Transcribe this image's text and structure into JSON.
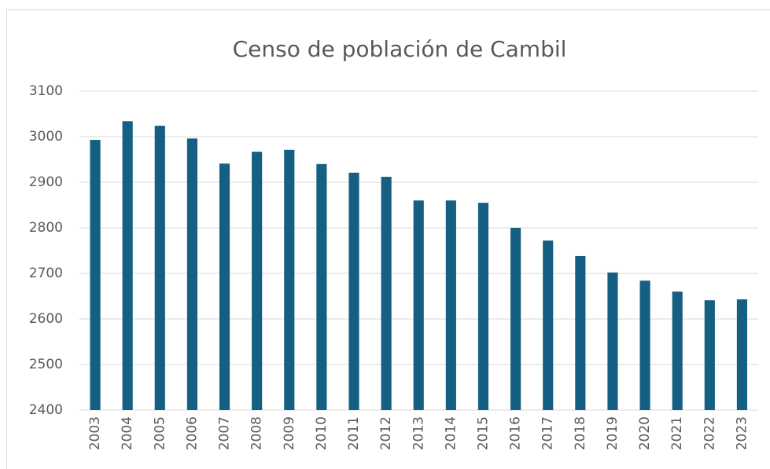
{
  "chart_data": {
    "type": "bar",
    "title": "Censo de población de Cambil",
    "categories": [
      "2003",
      "2004",
      "2005",
      "2006",
      "2007",
      "2008",
      "2009",
      "2010",
      "2011",
      "2012",
      "2013",
      "2014",
      "2015",
      "2016",
      "2017",
      "2018",
      "2019",
      "2020",
      "2021",
      "2022",
      "2023"
    ],
    "values": [
      2993,
      3034,
      3024,
      2996,
      2941,
      2967,
      2971,
      2940,
      2921,
      2912,
      2860,
      2860,
      2855,
      2800,
      2772,
      2738,
      2702,
      2684,
      2660,
      2641,
      2643
    ],
    "color": "#156082",
    "ylim": [
      2400,
      3100
    ],
    "yticks": [
      2400,
      2500,
      2600,
      2700,
      2800,
      2900,
      3000,
      3100
    ],
    "grid": true
  }
}
